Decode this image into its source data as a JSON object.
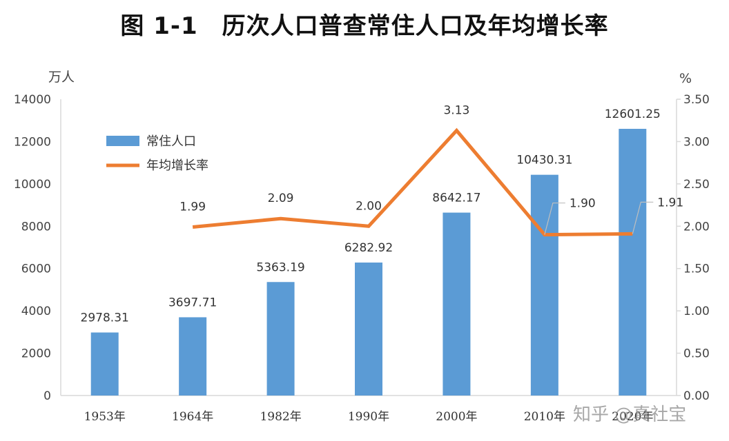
{
  "title": "图 1-1　历次人口普查常住人口及年均增长率",
  "watermark": "知乎 @真社宝",
  "chart_data": {
    "type": "bar+line",
    "categories": [
      "1953年",
      "1964年",
      "1982年",
      "1990年",
      "2000年",
      "2010年",
      "2020年"
    ],
    "series": [
      {
        "name": "常住人口",
        "type": "bar",
        "axis": "left",
        "color": "#5b9bd5",
        "values": [
          2978.31,
          3697.71,
          5363.19,
          6282.92,
          8642.17,
          10430.31,
          12601.25
        ],
        "labels": [
          "2978.31",
          "3697.71",
          "5363.19",
          "6282.92",
          "8642.17",
          "10430.31",
          "12601.25"
        ]
      },
      {
        "name": "年均增长率",
        "type": "line",
        "axis": "right",
        "color": "#ed7d31",
        "values": [
          null,
          1.99,
          2.09,
          2.0,
          3.13,
          1.9,
          1.91
        ],
        "labels": [
          "",
          "1.99",
          "2.09",
          "2.00",
          "3.13",
          "1.90",
          "1.91"
        ]
      }
    ],
    "y_left": {
      "unit": "万人",
      "min": 0,
      "max": 14000,
      "ticks": [
        "0",
        "2000",
        "4000",
        "6000",
        "8000",
        "10000",
        "12000",
        "14000"
      ]
    },
    "y_right": {
      "unit": "%",
      "min": 0,
      "max": 3.5,
      "ticks": [
        "0.00",
        "0.50",
        "1.00",
        "1.50",
        "2.00",
        "2.50",
        "3.00",
        "3.50"
      ]
    },
    "legend_position": "top-left",
    "grid": false
  }
}
